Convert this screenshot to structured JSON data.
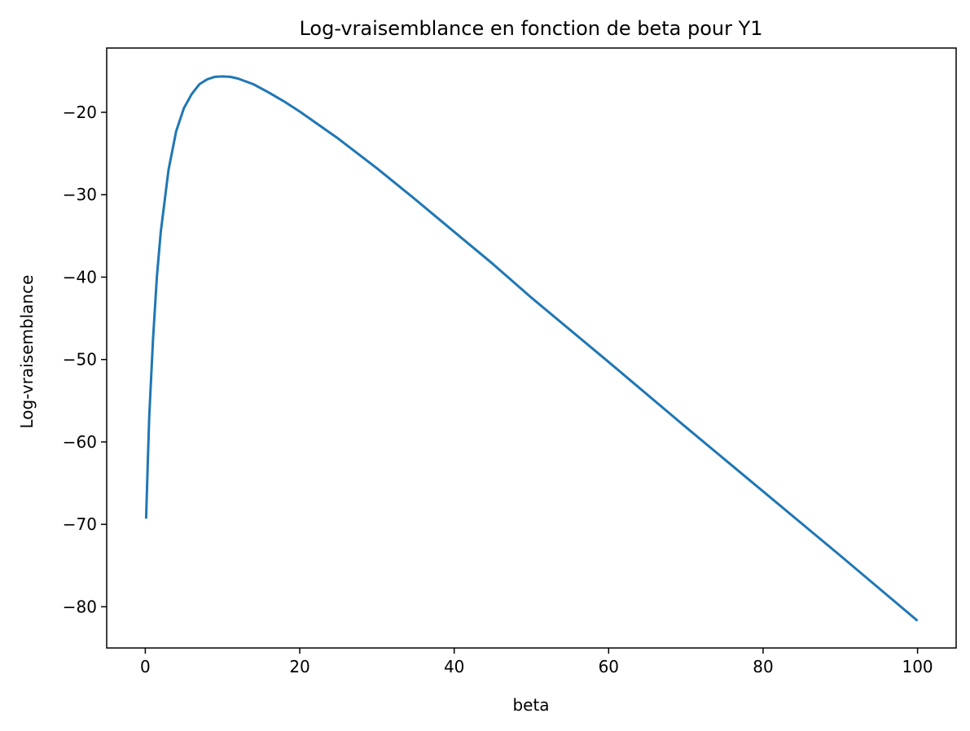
{
  "chart_data": {
    "type": "line",
    "title": "Log-vraisemblance en fonction de beta pour Y1",
    "xlabel": "beta",
    "ylabel": "Log-vraisemblance",
    "xlim": [
      -5,
      105
    ],
    "ylim": [
      -85,
      -12.2
    ],
    "xticks": [
      0,
      20,
      40,
      60,
      80,
      100
    ],
    "xtick_labels": [
      "0",
      "20",
      "40",
      "60",
      "80",
      "100"
    ],
    "yticks": [
      -20,
      -30,
      -40,
      -50,
      -60,
      -70,
      -80
    ],
    "ytick_labels": [
      "−20",
      "−30",
      "−40",
      "−50",
      "−60",
      "−70",
      "−80"
    ],
    "grid": false,
    "series": [
      {
        "color": "#1f77b4",
        "x": [
          0.1,
          0.3,
          0.5,
          1,
          1.5,
          2,
          3,
          4,
          5,
          6,
          7,
          8,
          9,
          10,
          11,
          12,
          14,
          16,
          18,
          20,
          25,
          30,
          35,
          40,
          45,
          50,
          60,
          70,
          80,
          90,
          100
        ],
        "y": [
          -69.3,
          -63.0,
          -57.0,
          -47.5,
          -40.0,
          -34.5,
          -27.0,
          -22.3,
          -19.5,
          -17.8,
          -16.6,
          -16.0,
          -15.7,
          -15.65,
          -15.7,
          -15.9,
          -16.6,
          -17.6,
          -18.7,
          -19.9,
          -23.2,
          -26.8,
          -30.6,
          -34.5,
          -38.4,
          -42.5,
          -50.3,
          -58.2,
          -66.0,
          -73.8,
          -81.7
        ]
      }
    ]
  }
}
